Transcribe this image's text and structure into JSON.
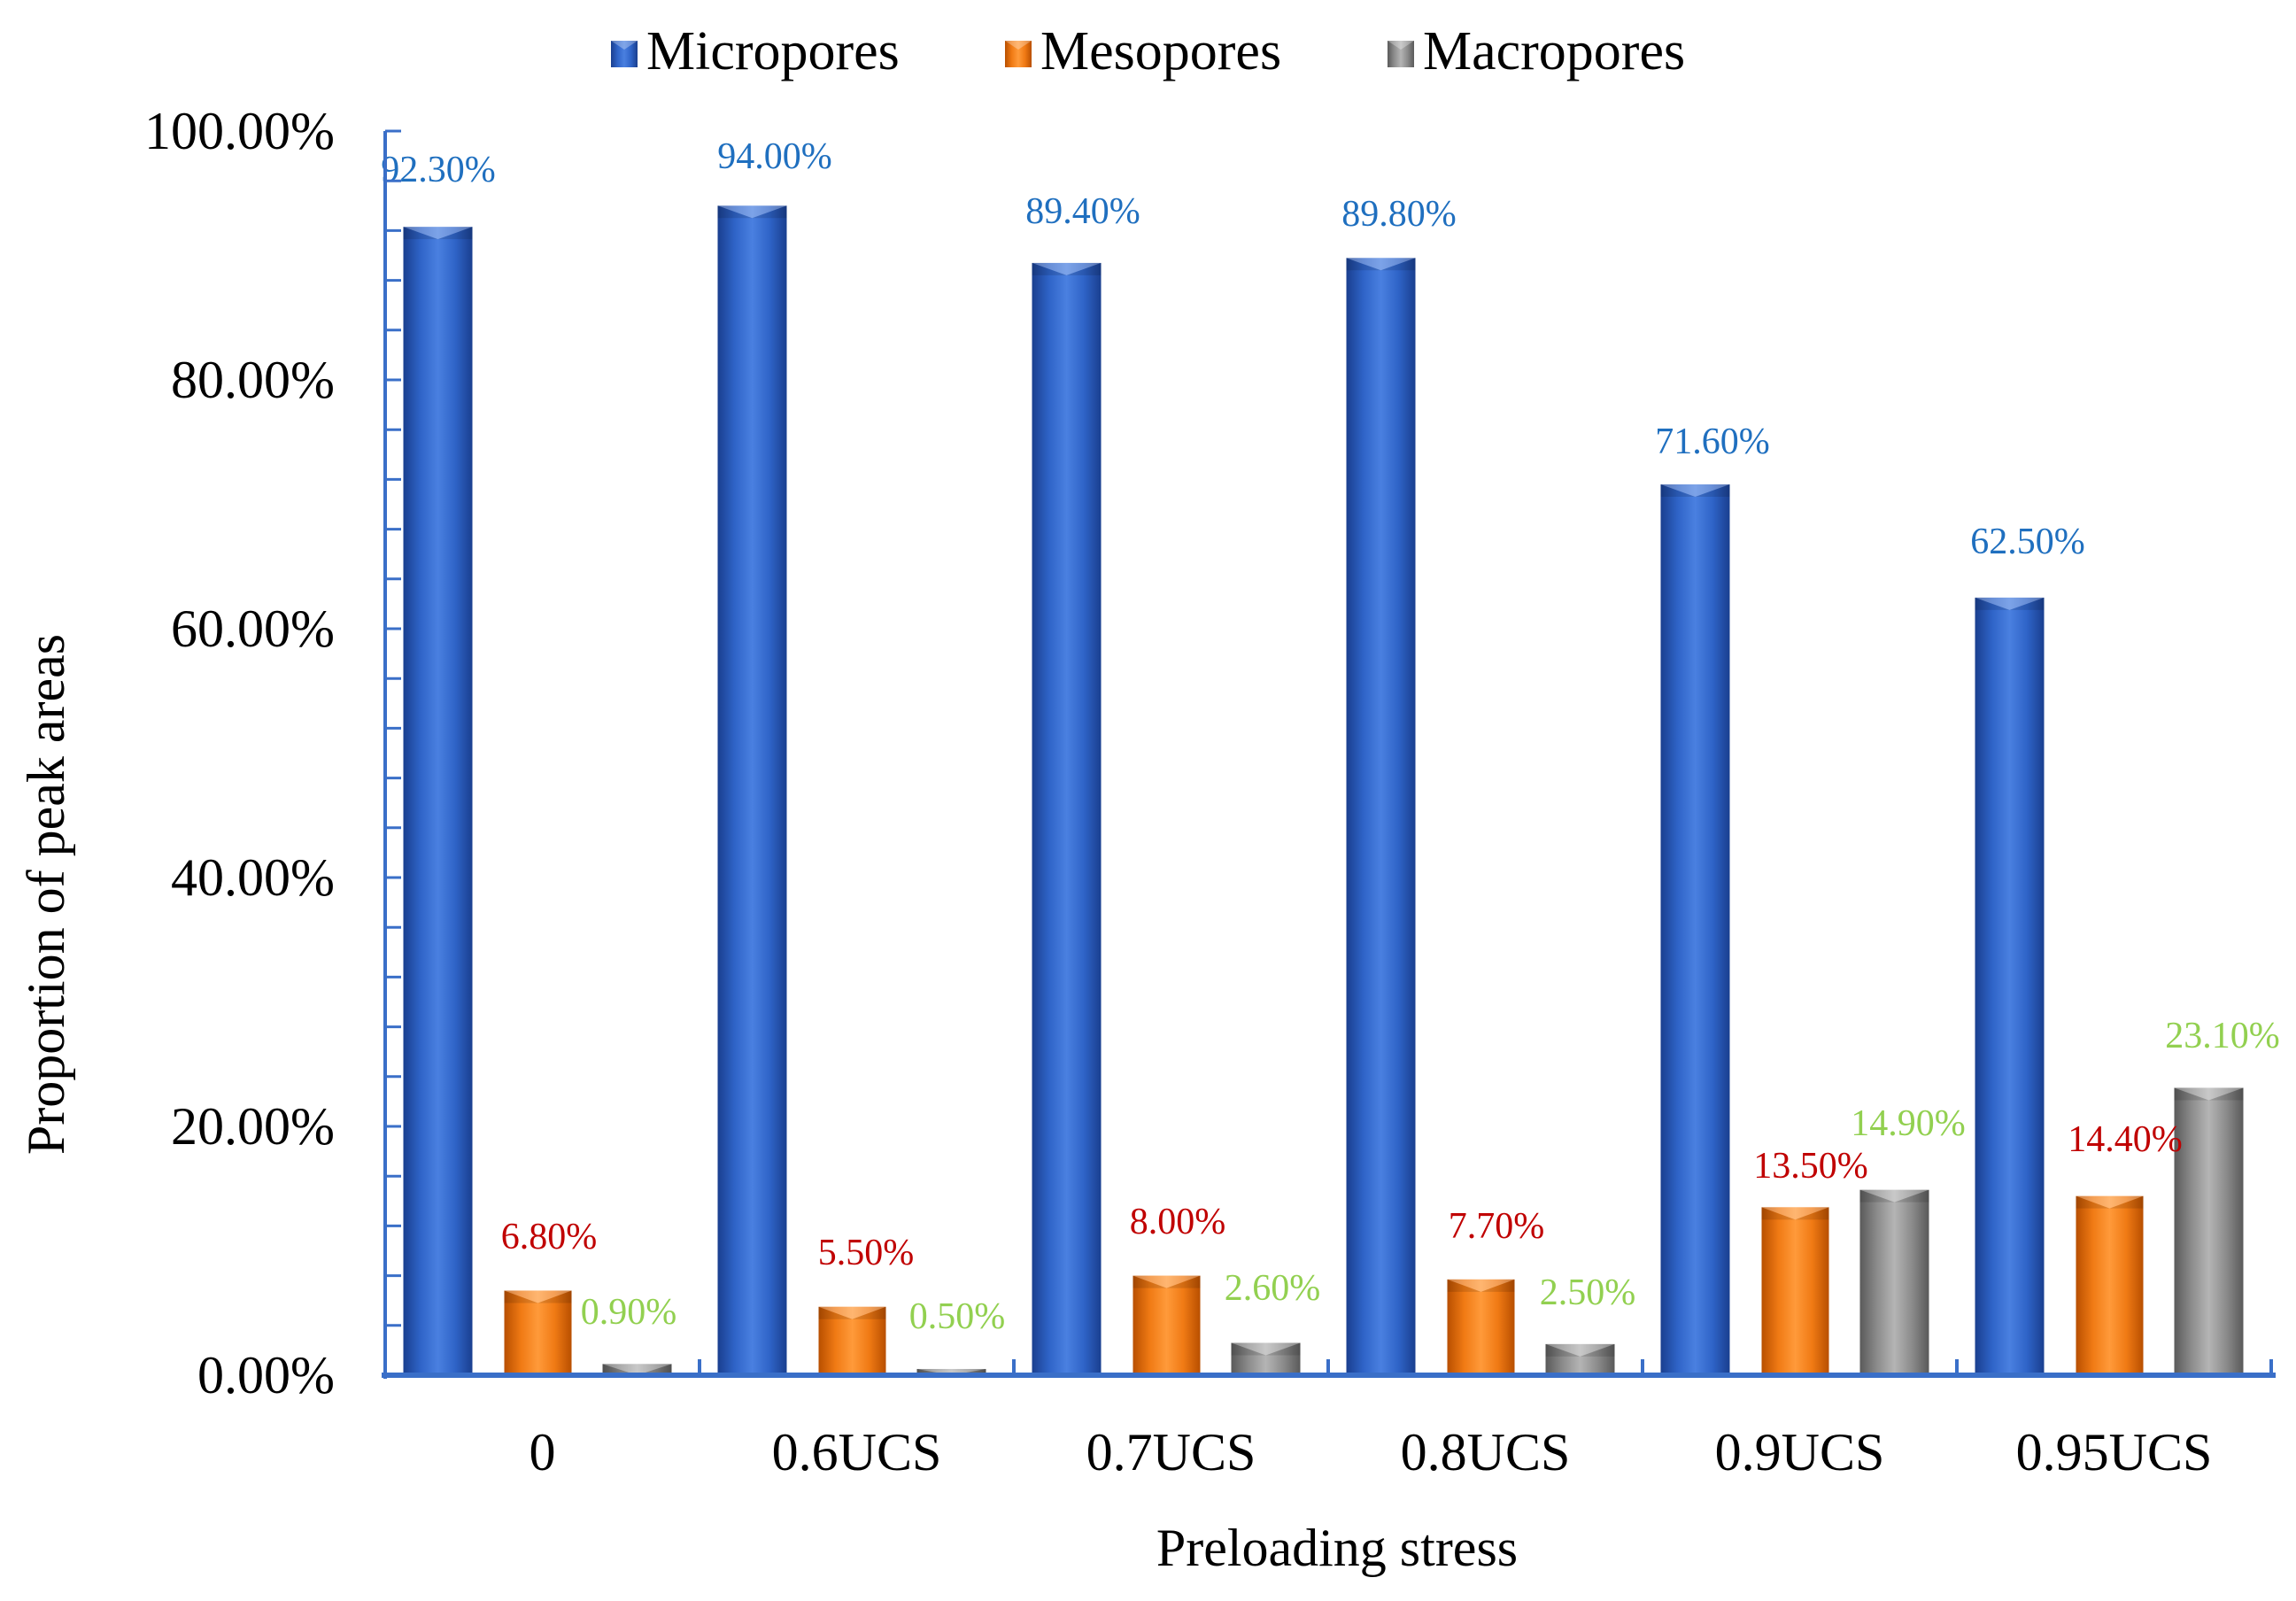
{
  "colors": {
    "micro": "#2f64c8",
    "meso": "#f07a14",
    "macro": "#8c8c8c",
    "axis": "#3a6fc8",
    "label_micro": "#1f6fbf",
    "label_meso": "#c00000",
    "label_macro": "#92d050"
  },
  "chart_data": {
    "type": "bar",
    "title": "",
    "xlabel": "Preloading stress",
    "ylabel": "Proportion of peak areas",
    "categories": [
      "0",
      "0.6UCS",
      "0.7UCS",
      "0.8UCS",
      "0.9UCS",
      "0.95UCS"
    ],
    "series": [
      {
        "name": "Micropores",
        "values": [
          92.3,
          94.0,
          89.4,
          89.8,
          71.6,
          62.5
        ],
        "labels": [
          "92.30%",
          "94.00%",
          "89.40%",
          "89.80%",
          "71.60%",
          "62.50%"
        ]
      },
      {
        "name": "Mesopores",
        "values": [
          6.8,
          5.5,
          8.0,
          7.7,
          13.5,
          14.4
        ],
        "labels": [
          "6.80%",
          "5.50%",
          "8.00%",
          "7.70%",
          "13.50%",
          "14.40%"
        ]
      },
      {
        "name": "Macropores",
        "values": [
          0.9,
          0.5,
          2.6,
          2.5,
          14.9,
          23.1
        ],
        "labels": [
          "0.90%",
          "0.50%",
          "2.60%",
          "2.50%",
          "14.90%",
          "23.10%"
        ]
      }
    ],
    "yticks": [
      "0.00%",
      "20.00%",
      "40.00%",
      "60.00%",
      "80.00%",
      "100.00%"
    ],
    "ylim": [
      0,
      100
    ],
    "legend_position": "top-center",
    "grid": false
  }
}
